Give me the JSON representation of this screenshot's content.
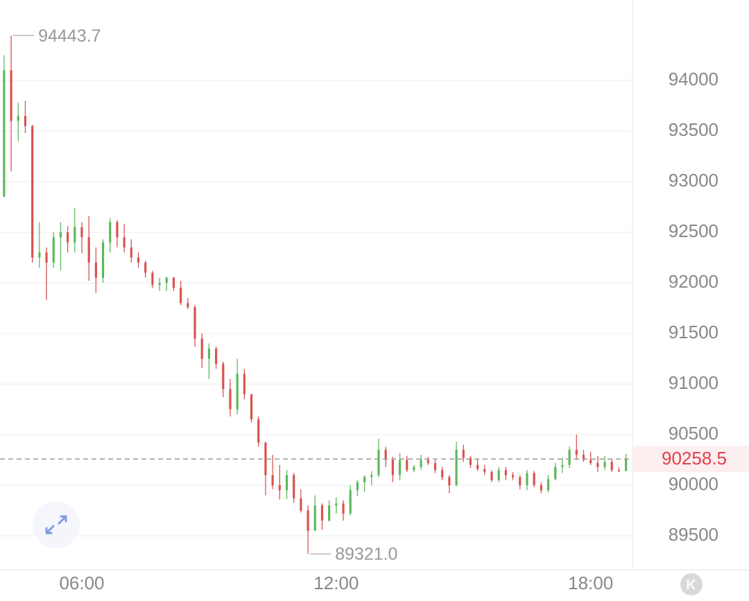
{
  "chart_data": {
    "type": "candlestick",
    "categories": [
      null,
      null,
      null,
      null,
      null,
      null,
      null,
      null,
      null,
      null,
      null,
      "06:00",
      null,
      null,
      null,
      null,
      null,
      null,
      null,
      null,
      null,
      null,
      null,
      null,
      null,
      null,
      null,
      null,
      null,
      null,
      null,
      null,
      null,
      null,
      null,
      null,
      null,
      null,
      null,
      null,
      null,
      null,
      null,
      null,
      null,
      null,
      null,
      "12:00",
      null,
      null,
      null,
      null,
      null,
      null,
      null,
      null,
      null,
      null,
      null,
      null,
      null,
      null,
      null,
      null,
      null,
      null,
      null,
      null,
      null,
      null,
      null,
      null,
      null,
      null,
      null,
      null,
      null,
      null,
      null,
      null,
      null,
      null,
      null,
      "18:00",
      null,
      null,
      null,
      null,
      null
    ],
    "open": [
      92850,
      94100,
      93600,
      93650,
      93550,
      92250,
      92300,
      92200,
      92450,
      92500,
      92400,
      92550,
      92450,
      92200,
      92050,
      92400,
      92600,
      92450,
      92350,
      92250,
      92200,
      92100,
      91980,
      92000,
      92050,
      91950,
      91800,
      91760,
      91450,
      91250,
      91350,
      91200,
      90950,
      90750,
      91100,
      90900,
      90650,
      90420,
      90100,
      90000,
      89950,
      90100,
      89870,
      89750,
      89550,
      89800,
      89650,
      89800,
      89820,
      89720,
      89950,
      90030,
      90080,
      90100,
      90350,
      90250,
      90100,
      90250,
      90150,
      90180,
      90250,
      90220,
      90150,
      90080,
      90000,
      90350,
      90270,
      90200,
      90160,
      90130,
      90050,
      90150,
      90100,
      90080,
      90000,
      90120,
      90000,
      89950,
      90060,
      90180,
      90200,
      90350,
      90300,
      90250,
      90220,
      90180,
      90230,
      90150,
      90140
    ],
    "high": [
      94250,
      94443.7,
      93780,
      93800,
      93560,
      92600,
      92350,
      92500,
      92600,
      92560,
      92740,
      92600,
      92660,
      92350,
      92430,
      92640,
      92620,
      92580,
      92430,
      92300,
      92220,
      92120,
      92050,
      92060,
      92060,
      92020,
      91850,
      91780,
      91500,
      91400,
      91370,
      91220,
      91050,
      91250,
      91150,
      90900,
      90680,
      90430,
      90300,
      90200,
      90150,
      90120,
      89960,
      89800,
      89900,
      89820,
      89850,
      89880,
      89850,
      90000,
      90050,
      90100,
      90140,
      90460,
      90380,
      90280,
      90320,
      90290,
      90200,
      90300,
      90280,
      90250,
      90180,
      90100,
      90430,
      90400,
      90290,
      90260,
      90200,
      90150,
      90180,
      90180,
      90130,
      90100,
      90150,
      90140,
      90030,
      90100,
      90220,
      90270,
      90380,
      90500,
      90350,
      90330,
      90290,
      90290,
      90260,
      90180,
      90310
    ],
    "low": [
      92850,
      93100,
      93400,
      93480,
      92200,
      92150,
      91830,
      92150,
      92120,
      92300,
      92300,
      92290,
      92020,
      91900,
      92000,
      92300,
      92350,
      92300,
      92200,
      92150,
      92050,
      91950,
      91920,
      91920,
      91920,
      91780,
      91740,
      91370,
      91160,
      91050,
      91150,
      90870,
      90680,
      90700,
      90850,
      90620,
      90380,
      89900,
      89960,
      89860,
      89860,
      89830,
      89730,
      89321,
      89550,
      89560,
      89640,
      89720,
      89650,
      89700,
      89890,
      89930,
      90000,
      90080,
      90180,
      90030,
      90050,
      90130,
      90130,
      90150,
      90200,
      90120,
      90050,
      89920,
      89990,
      90230,
      90170,
      90140,
      90100,
      90030,
      90030,
      90050,
      90050,
      89960,
      89950,
      89980,
      89920,
      89930,
      90050,
      90120,
      90170,
      90250,
      90230,
      90200,
      90130,
      90150,
      90130,
      90130,
      90140
    ],
    "close": [
      94100,
      93600,
      93650,
      93550,
      92250,
      92300,
      92200,
      92450,
      92500,
      92400,
      92550,
      92450,
      92200,
      92050,
      92400,
      92600,
      92450,
      92350,
      92250,
      92200,
      92100,
      91980,
      92000,
      92050,
      91950,
      91800,
      91760,
      91450,
      91250,
      91350,
      91200,
      90950,
      90750,
      91100,
      90900,
      90650,
      90420,
      90100,
      90000,
      89950,
      90100,
      89870,
      89750,
      89550,
      89800,
      89650,
      89800,
      89820,
      89720,
      89950,
      90030,
      90080,
      90100,
      90350,
      90250,
      90100,
      90250,
      90150,
      90180,
      90250,
      90220,
      90150,
      90080,
      90000,
      90350,
      90270,
      90200,
      90160,
      90130,
      90050,
      90150,
      90100,
      90080,
      90000,
      90120,
      90000,
      89950,
      90060,
      90180,
      90200,
      90350,
      90300,
      90250,
      90220,
      90180,
      90230,
      90150,
      90140,
      90258.5
    ],
    "up_color": "#5cb85c",
    "down_color": "#d9534f",
    "ylim": [
      89164,
      94795
    ],
    "yticks": [
      89500,
      90000,
      90500,
      91000,
      91500,
      92000,
      92500,
      93000,
      93500,
      94000
    ],
    "grid": true,
    "annotations": [
      {
        "value": 94443.7,
        "label": "94443.7"
      },
      {
        "value": 89321,
        "label": "89321.0"
      }
    ],
    "last_price": 90258.5,
    "last_price_color": "#e0404a"
  }
}
